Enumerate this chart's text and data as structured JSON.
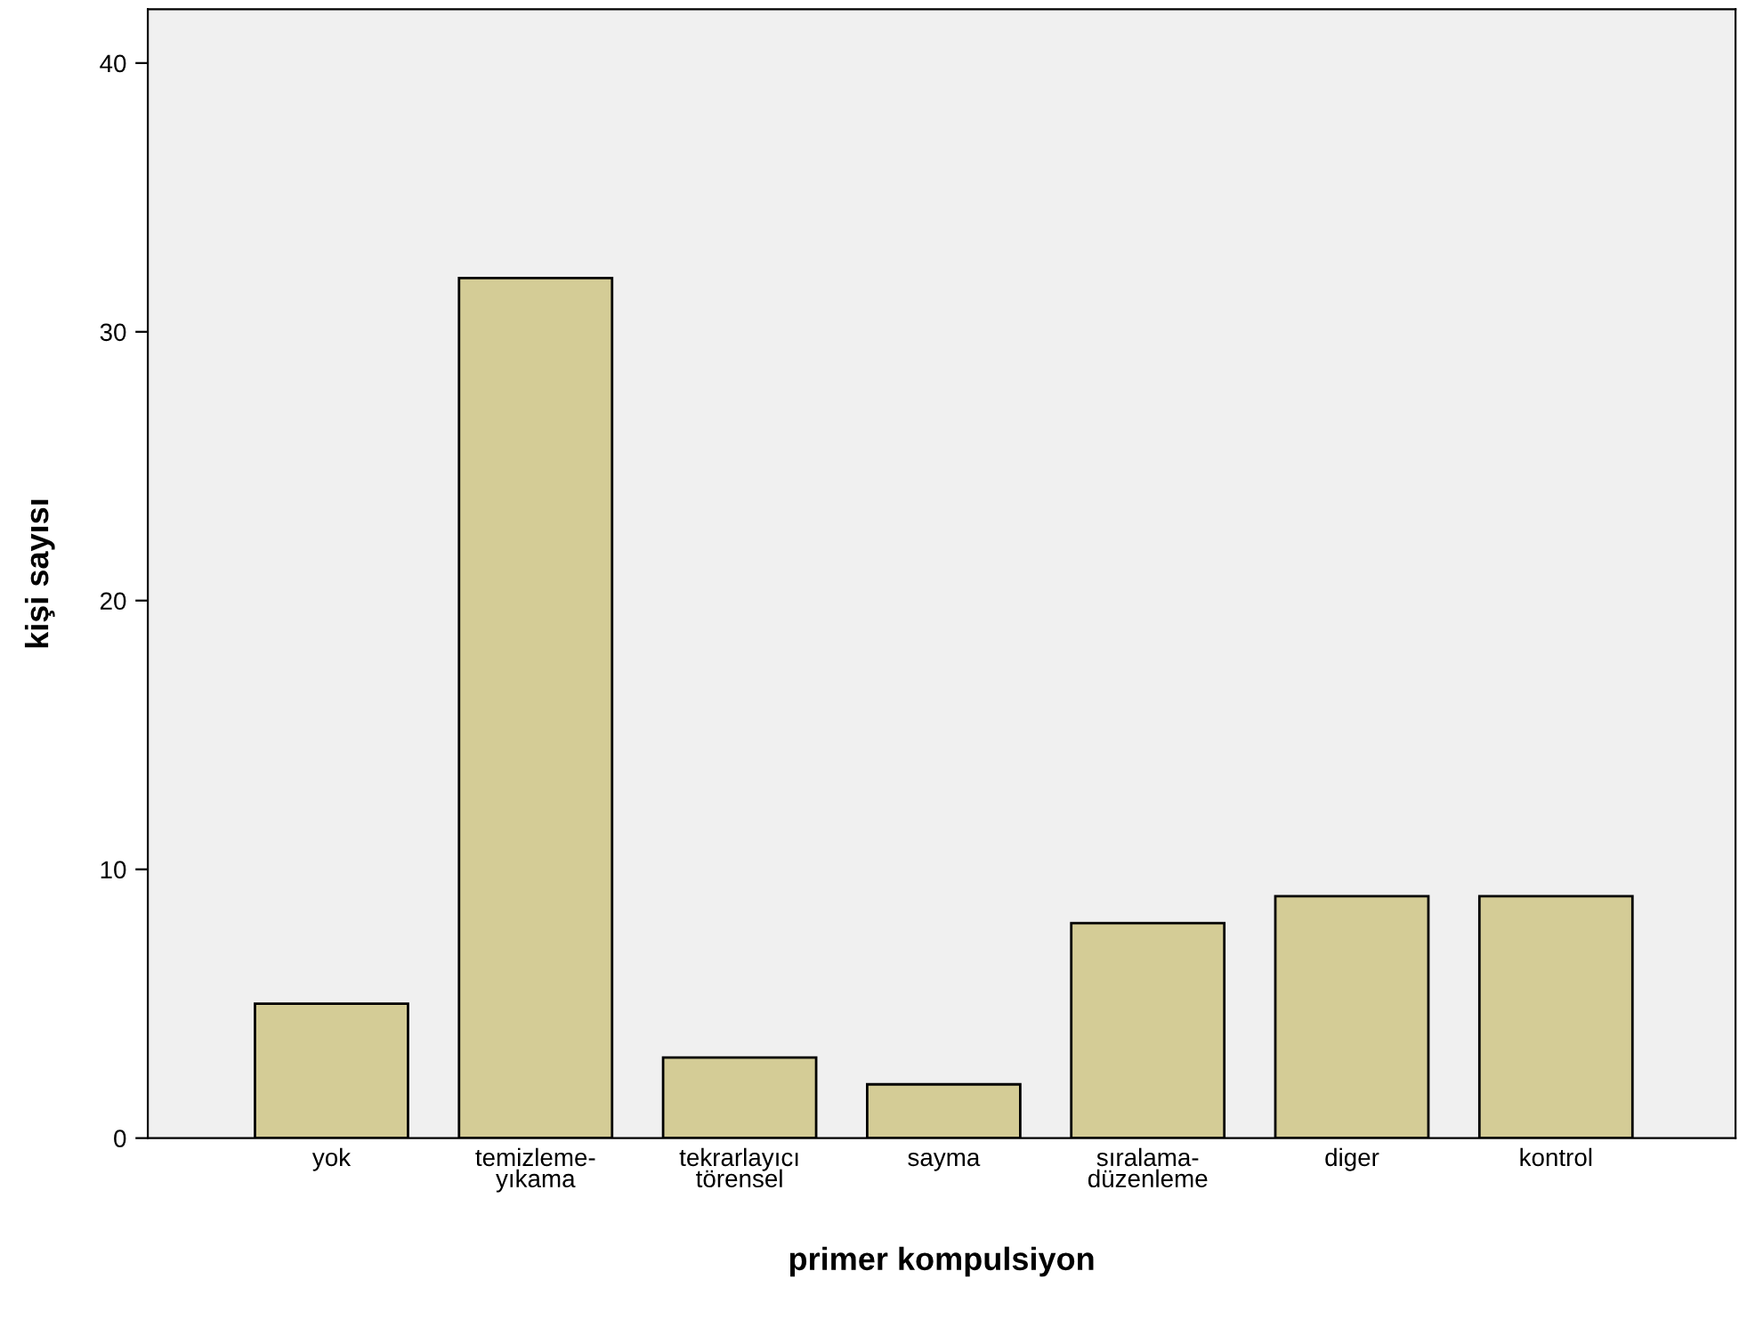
{
  "chart_data": {
    "type": "bar",
    "xlabel": "primer kompulsiyon",
    "ylabel": "kişi sayısı",
    "categories": [
      "yok",
      "temizleme-\nyıkama",
      "tekrarlayıcı\ntörensel",
      "sayma",
      "sıralama-\ndüzenleme",
      "diger",
      "kontrol"
    ],
    "values": [
      5,
      32,
      3,
      2,
      8,
      9,
      9
    ],
    "color": "#d4cc96",
    "ylim": [
      0,
      42
    ],
    "yticks": [
      0,
      10,
      20,
      30,
      40
    ],
    "grid": false
  }
}
